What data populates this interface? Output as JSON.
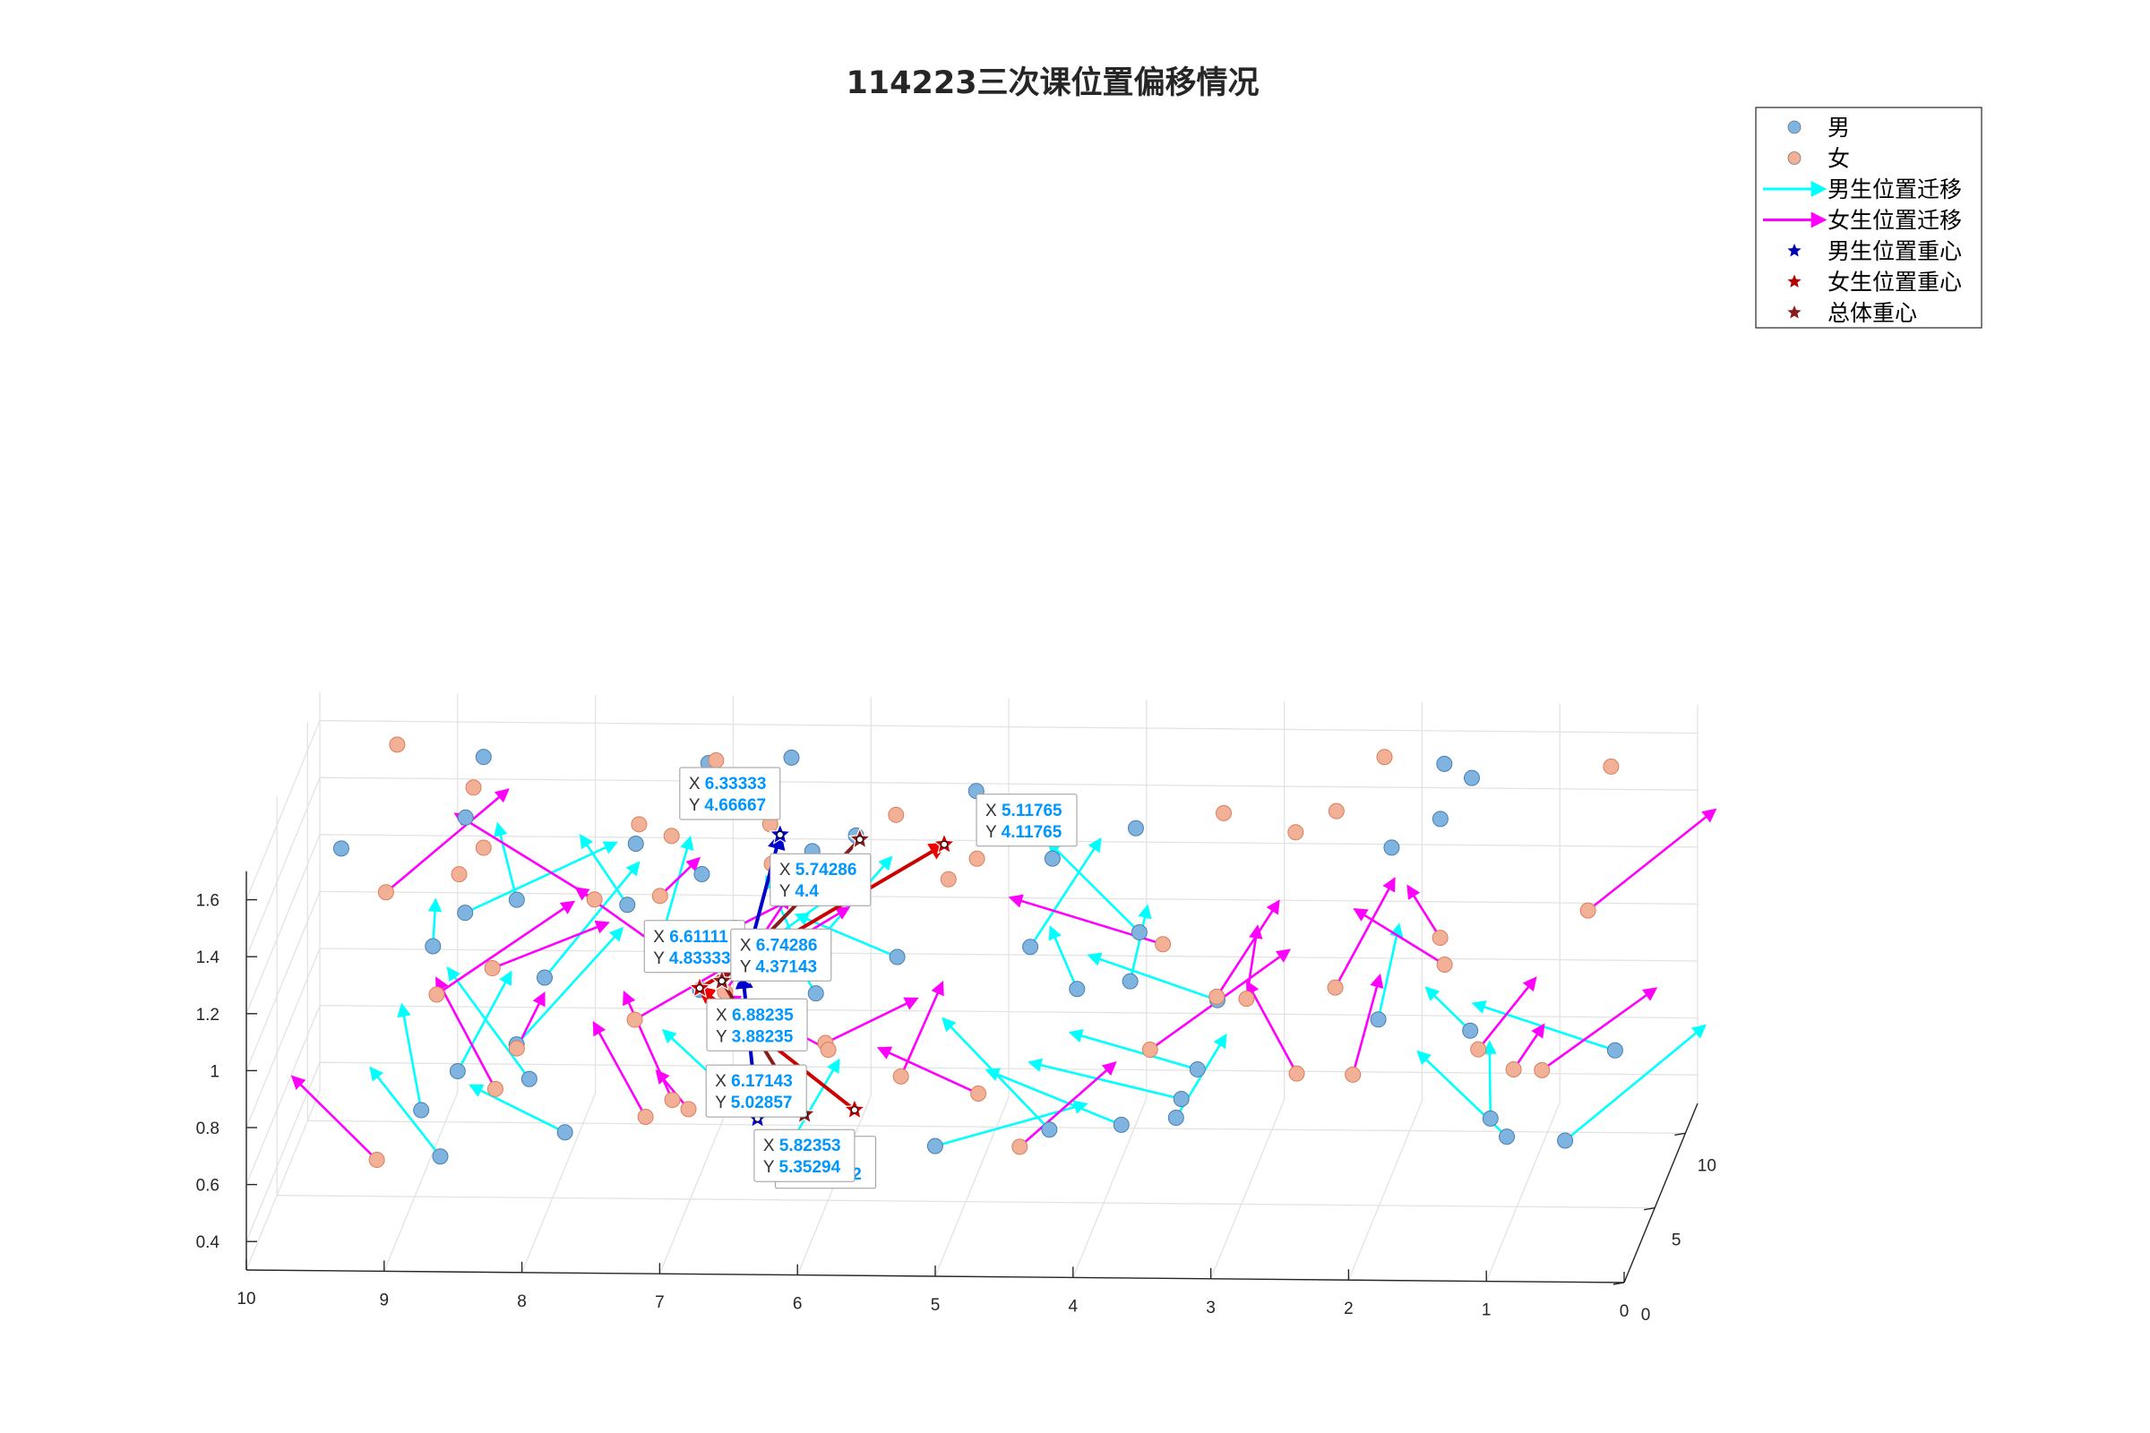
{
  "chart_data": {
    "type": "scatter",
    "title": "114223三次课位置偏移情况",
    "xlabel": "",
    "ylabel": "",
    "zlabel": "",
    "axes": {
      "x_ticks": [
        "10",
        "9",
        "8",
        "7",
        "6",
        "5",
        "4",
        "3",
        "2",
        "1",
        "0"
      ],
      "y_ticks": [
        "0",
        "5",
        "10"
      ],
      "z_ticks": [
        "0.4",
        "0.6",
        "0.8",
        "1",
        "1.2",
        "1.4",
        "1.6"
      ],
      "xlim": [
        0,
        10
      ],
      "ylim": [
        0,
        12
      ],
      "zlim": [
        0.3,
        1.7
      ],
      "grid": true
    },
    "legend": {
      "location": "top-right",
      "entries": [
        {
          "label": "男",
          "kind": "marker",
          "color": "#7fb3e0"
        },
        {
          "label": "女",
          "kind": "marker",
          "color": "#f2b097"
        },
        {
          "label": "男生位置迁移",
          "kind": "arrow",
          "color": "#00ffff"
        },
        {
          "label": "女生位置迁移",
          "kind": "arrow",
          "color": "#ff00ff"
        },
        {
          "label": "男生位置重心",
          "kind": "star",
          "color": "#0000b3"
        },
        {
          "label": "女生位置重心",
          "kind": "star",
          "color": "#b30000"
        },
        {
          "label": "总体重心",
          "kind": "star",
          "color": "#8b1a1a"
        }
      ]
    },
    "colors": {
      "male": "#7fb3e0",
      "female": "#f2b097",
      "male_arrow": "#00ffff",
      "female_arrow": "#ff00ff",
      "male_centroid": "#0000cc",
      "female_centroid": "#cc0000",
      "overall_centroid": "#8b1a1a",
      "tooltip_value": "#0096ff"
    },
    "layers": [
      {
        "z": 0.6,
        "session": 1
      },
      {
        "z": 1.1,
        "session": 2
      },
      {
        "z": 1.6,
        "session": 3
      }
    ],
    "centroids": [
      {
        "group": "男生位置重心",
        "session": 1,
        "x": 6.5,
        "y": 4.72222,
        "z": 0.6,
        "label": {
          "x": "6.5",
          "y": "4.72222"
        }
      },
      {
        "group": "总体重心",
        "session": 1,
        "x": 6.17143,
        "y": 5.02857,
        "z": 0.6,
        "label": {
          "x": "6.17143",
          "y": "5.02857"
        }
      },
      {
        "group": "女生位置重心",
        "session": 1,
        "x": 5.82353,
        "y": 5.35294,
        "z": 0.6,
        "label": {
          "x": "5.82353",
          "y": "5.35294"
        }
      },
      {
        "group": "男生位置重心",
        "session": 2,
        "x": 6.61111,
        "y": 4.83333,
        "z": 1.1,
        "label": {
          "x": "6.61111",
          "y": "4.83333"
        }
      },
      {
        "group": "总体重心",
        "session": 2,
        "x": 6.74286,
        "y": 4.37143,
        "z": 1.1,
        "label": {
          "x": "6.74286",
          "y": "4.37143"
        }
      },
      {
        "group": "女生位置重心",
        "session": 2,
        "x": 6.88235,
        "y": 3.88235,
        "z": 1.1,
        "label": {
          "x": "6.88235",
          "y": "3.88235"
        }
      },
      {
        "group": "男生位置重心",
        "session": 3,
        "x": 6.33333,
        "y": 4.66667,
        "z": 1.6,
        "label": {
          "x": "6.33333",
          "y": "4.66667"
        }
      },
      {
        "group": "总体重心",
        "session": 3,
        "x": 5.74286,
        "y": 4.4,
        "z": 1.6,
        "label": {
          "x": "5.74286",
          "y": "4.4"
        }
      },
      {
        "group": "女生位置重心",
        "session": 3,
        "x": 5.11765,
        "y": 4.11765,
        "z": 1.6,
        "label": {
          "x": "5.11765",
          "y": "4.11765"
        }
      }
    ],
    "tooltip_prefix": {
      "x": "X",
      "y": "Y"
    }
  }
}
